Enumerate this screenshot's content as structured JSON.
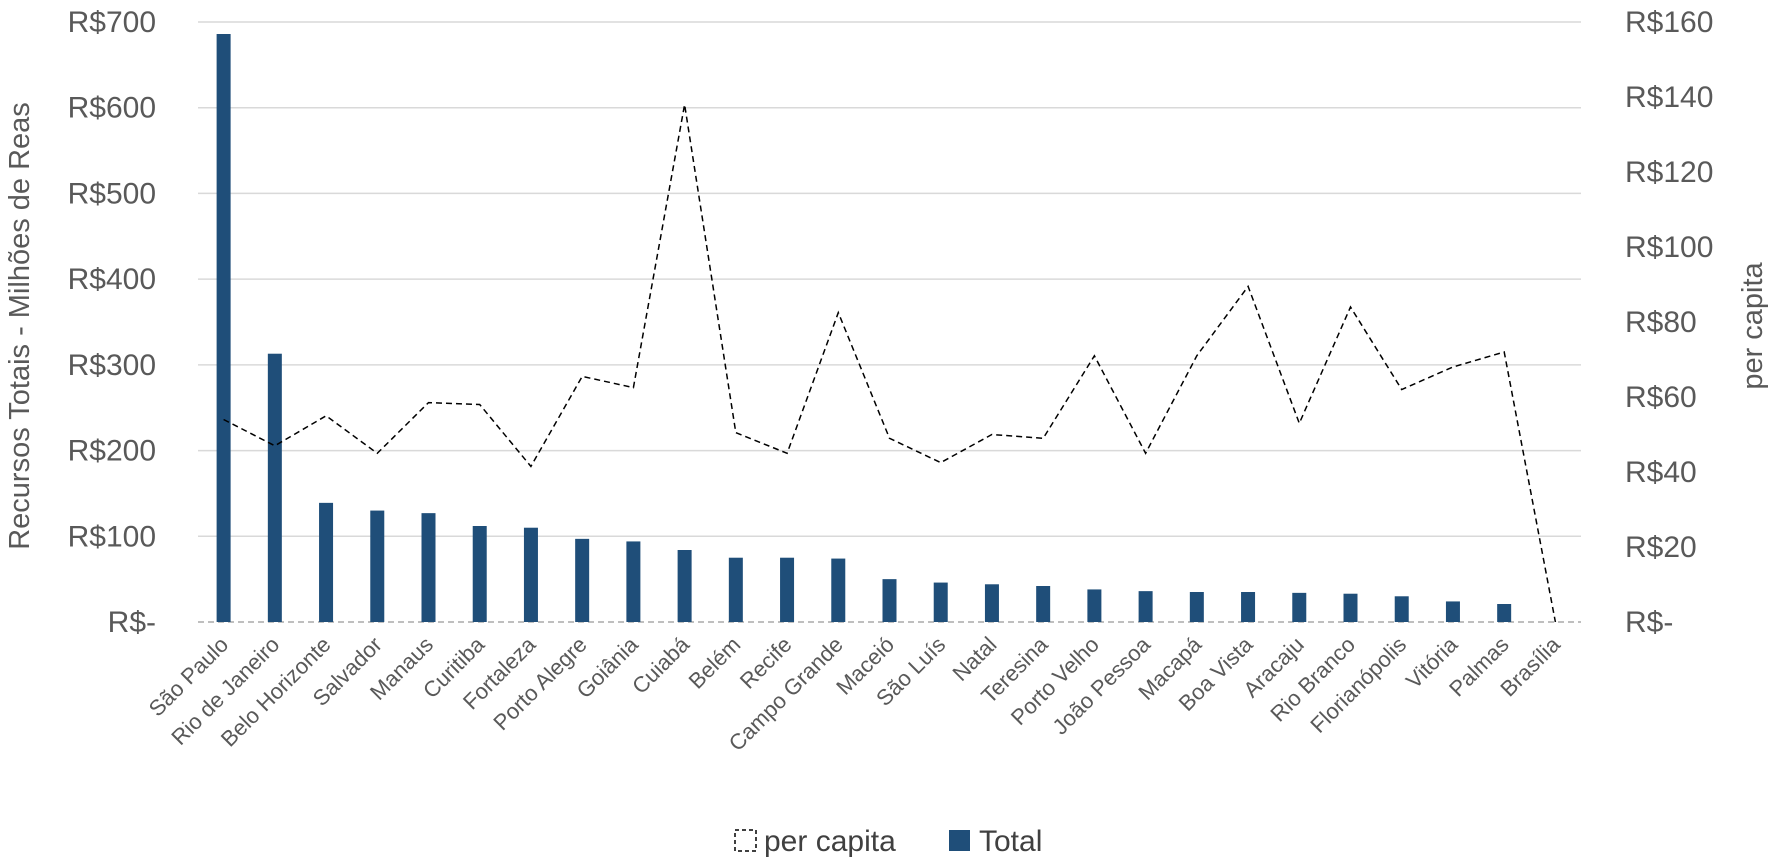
{
  "chart_data": {
    "type": "bar",
    "categories": [
      "São Paulo",
      "Rio de Janeiro",
      "Belo Horizonte",
      "Salvador",
      "Manaus",
      "Curitiba",
      "Fortaleza",
      "Porto Alegre",
      "Goiânia",
      "Cuiabá",
      "Belém",
      "Recife",
      "Campo Grande",
      "Maceió",
      "São Luís",
      "Natal",
      "Teresina",
      "Porto Velho",
      "João Pessoa",
      "Macapá",
      "Boa Vista",
      "Aracaju",
      "Rio Branco",
      "Florianópolis",
      "Vitória",
      "Palmas",
      "Brasília"
    ],
    "series": [
      {
        "name": "Total",
        "type": "bar",
        "axis": "left",
        "color": "#1f4e79",
        "values": [
          686,
          313,
          139,
          130,
          127,
          112,
          110,
          97,
          94,
          84,
          75,
          75,
          74,
          50,
          46,
          44,
          42,
          38,
          36,
          35,
          35,
          34,
          33,
          30,
          24,
          21,
          0
        ]
      },
      {
        "name": "per capita",
        "type": "line",
        "style": "dashed",
        "axis": "right",
        "color": "#000000",
        "values": [
          54,
          47,
          55,
          45,
          58.5,
          58,
          41.5,
          65.5,
          62.5,
          138,
          50.5,
          45,
          82.5,
          49,
          42.5,
          50,
          49,
          71,
          45,
          71,
          89.5,
          53,
          84,
          62,
          68,
          72,
          0
        ]
      }
    ],
    "ylabel": "Recursos Totais - Milhões de Reas",
    "y2label": "per capita",
    "ylim": [
      0,
      700
    ],
    "y2lim": [
      0,
      160
    ],
    "yticks": [
      "R$-",
      "R$100",
      "R$200",
      "R$300",
      "R$400",
      "R$500",
      "R$600",
      "R$700"
    ],
    "y2ticks": [
      "R$-",
      "R$20",
      "R$40",
      "R$60",
      "R$80",
      "R$100",
      "R$120",
      "R$140",
      "R$160"
    ],
    "grid": true,
    "legend": {
      "position": "bottom",
      "items": [
        {
          "label": "per capita",
          "marker": "dashed-box"
        },
        {
          "label": "Total",
          "marker": "filled-box",
          "color": "#1f4e79"
        }
      ]
    }
  }
}
